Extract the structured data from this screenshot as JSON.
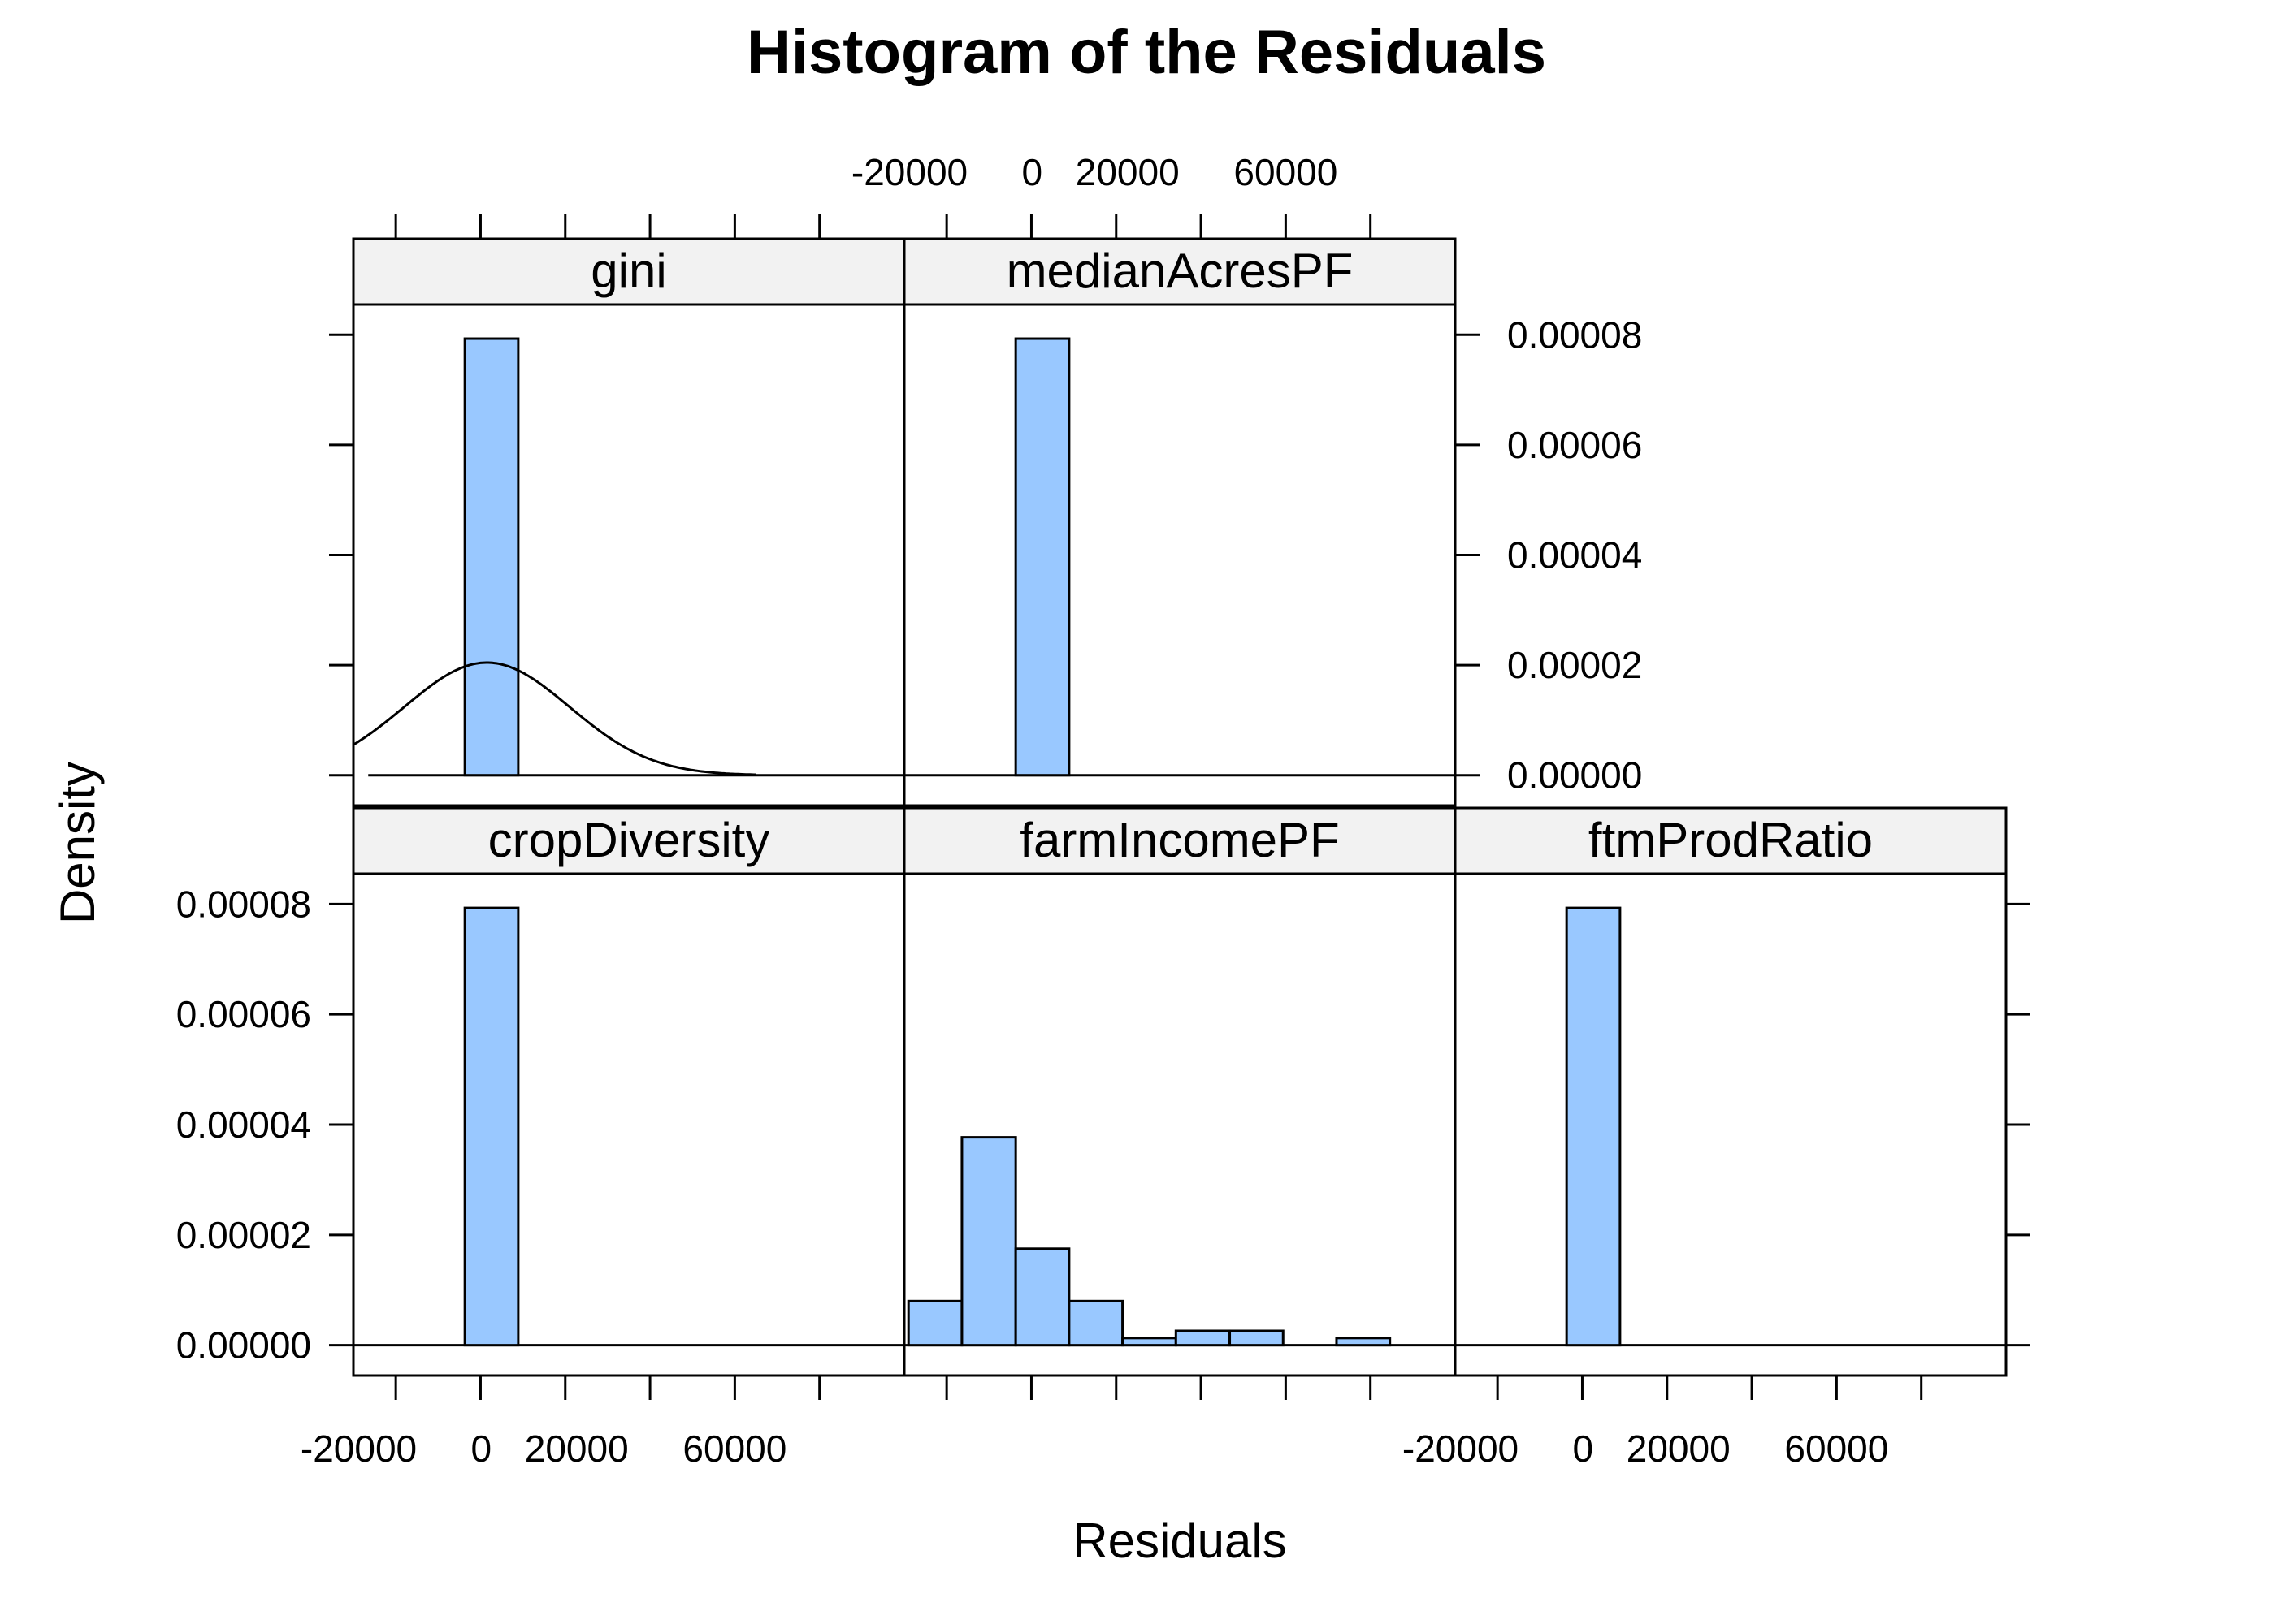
{
  "chart_data": {
    "type": "bar",
    "title": "Histogram of the Residuals",
    "xlabel": "Residuals",
    "ylabel": "Density",
    "xlim": [
      -30000,
      100000
    ],
    "ylim": [
      -5.5e-06,
      8.55e-05
    ],
    "x_ticks": [
      -20000,
      0,
      20000,
      40000,
      60000,
      80000
    ],
    "x_tick_labels": [
      "-20000",
      "0",
      "20000",
      "",
      "60000",
      ""
    ],
    "y_ticks": [
      0,
      2e-05,
      4e-05,
      6e-05,
      8e-05
    ],
    "y_tick_labels": [
      "0.00000",
      "0.00002",
      "0.00004",
      "0.00006",
      "0.00008"
    ],
    "grid": false,
    "legend": "none",
    "bar_color": "#99c8ff",
    "strip_color": "#f2f2f2",
    "panels": [
      {
        "name": "gini",
        "bins": [
          {
            "x0": -3700,
            "x1": 8900,
            "density": 7.93e-05
          }
        ],
        "density_curve": {
          "mean": 1500,
          "sd": 19500,
          "from": -30000,
          "to": 65000
        }
      },
      {
        "name": "medianAcresPF",
        "bins": [
          {
            "x0": -3700,
            "x1": 8900,
            "density": 7.93e-05
          }
        ]
      },
      {
        "name": "cropDiversity",
        "bins": [
          {
            "x0": -3700,
            "x1": 8900,
            "density": 7.93e-05
          }
        ]
      },
      {
        "name": "farmIncomePF",
        "bins": [
          {
            "x0": -29000,
            "x1": -16400,
            "density": 8e-06
          },
          {
            "x0": -16400,
            "x1": -3700,
            "density": 3.77e-05
          },
          {
            "x0": -3700,
            "x1": 8900,
            "density": 1.75e-05
          },
          {
            "x0": 8900,
            "x1": 21500,
            "density": 8e-06
          },
          {
            "x0": 21500,
            "x1": 34100,
            "density": 1.3e-06
          },
          {
            "x0": 34100,
            "x1": 46800,
            "density": 2.6e-06
          },
          {
            "x0": 46800,
            "x1": 59400,
            "density": 2.6e-06
          },
          {
            "x0": 59400,
            "x1": 72000,
            "density": 0
          },
          {
            "x0": 72000,
            "x1": 84600,
            "density": 1.3e-06
          }
        ]
      },
      {
        "name": "ftmProdRatio",
        "bins": [
          {
            "x0": -3700,
            "x1": 8900,
            "density": 7.93e-05
          }
        ]
      }
    ]
  }
}
